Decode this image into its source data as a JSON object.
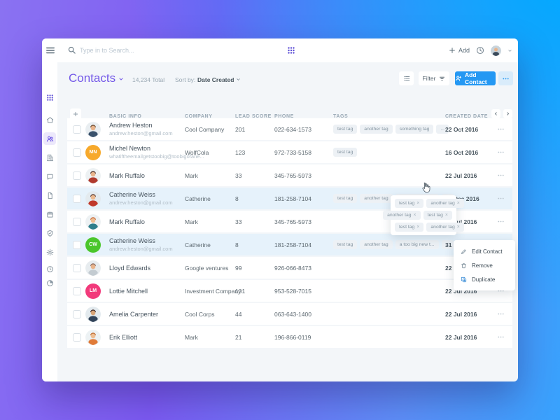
{
  "topbar": {
    "search_placeholder": "Type in to Search...",
    "add_label": "Add"
  },
  "sidebar": {
    "items": [
      {
        "name": "apps",
        "icon": "grid",
        "active": false,
        "accent": true
      },
      {
        "name": "home",
        "icon": "home",
        "active": false
      },
      {
        "name": "contacts",
        "icon": "users",
        "active": true
      },
      {
        "name": "companies",
        "icon": "building",
        "active": false
      },
      {
        "name": "messages",
        "icon": "chat",
        "active": false
      },
      {
        "name": "documents",
        "icon": "file",
        "active": false
      },
      {
        "name": "calendar",
        "icon": "calendar",
        "active": false
      },
      {
        "name": "tasks",
        "icon": "shield-check",
        "active": false
      },
      {
        "name": "settings",
        "icon": "gear",
        "active": false
      },
      {
        "name": "history",
        "icon": "history",
        "active": false
      },
      {
        "name": "reports",
        "icon": "pie",
        "active": false
      }
    ]
  },
  "page": {
    "title": "Contacts",
    "total": "14,234 Total",
    "sort_label": "Sort by:",
    "sort_value": "Date Created",
    "filter_label": "Filter",
    "add_contact_label": "Add Contact"
  },
  "table": {
    "headers": {
      "basic_info": "BASIC INFO",
      "company": "COMPANY",
      "lead_score": "LEAD SCORE",
      "phone": "PHONE",
      "tags": "TAGS",
      "created_date": "CREATED DATE"
    },
    "overflow_pill": "...",
    "rows": [
      {
        "name": "Andrew Heston",
        "email": "andrew.heston@gmail.com",
        "company": "Cool Company",
        "lead_score": "201",
        "phone": "022-634-1573",
        "tags": [
          "test tag",
          "another tag",
          "something tag"
        ],
        "tags_overflow": true,
        "created": "22 Oct 2016",
        "highlighted": false,
        "menu_active": false,
        "avatar": {
          "kind": "photo",
          "bg": "#E9EEF1",
          "shirt": "#39516B",
          "skin": "#E8B48C",
          "hair": "#6B4A2F"
        }
      },
      {
        "name": "Michel Newton",
        "email": "whatiftheemailgetstoobig@toobigofane...",
        "company": "WolfCola",
        "lead_score": "123",
        "phone": "972-733-5158",
        "tags": [
          "test tag"
        ],
        "tags_overflow": false,
        "created": "16 Oct 2016",
        "highlighted": false,
        "menu_active": false,
        "avatar": {
          "kind": "initials",
          "text": "MN",
          "bg": "#F7A92B"
        }
      },
      {
        "name": "Mark Ruffalo",
        "email": "",
        "company": "Mark",
        "lead_score": "33",
        "phone": "345-765-5973",
        "tags": [],
        "tags_overflow": false,
        "created": "22 Jul 2016",
        "highlighted": false,
        "menu_active": false,
        "avatar": {
          "kind": "photo",
          "bg": "#EDF1F3",
          "shirt": "#B03A2E",
          "skin": "#E8B48C",
          "hair": "#4E342E"
        }
      },
      {
        "name": "Catherine Weiss",
        "email": "andrew.heston@gmail.com",
        "company": "Catherine",
        "lead_score": "8",
        "phone": "181-258-7104",
        "tags": [
          "test tag",
          "another tag",
          "a too big new t..."
        ],
        "tags_overflow": true,
        "created": "31 Dec 2016",
        "highlighted": true,
        "menu_active": false,
        "avatar": {
          "kind": "photo",
          "bg": "#E3EAEE",
          "shirt": "#C0392B",
          "skin": "#ECB98F",
          "hair": "#5D4037"
        }
      },
      {
        "name": "Mark Ruffalo",
        "email": "",
        "company": "Mark",
        "lead_score": "33",
        "phone": "345-765-5973",
        "tags": [],
        "tags_overflow": false,
        "created": "22 Jul 2016",
        "highlighted": false,
        "menu_active": false,
        "avatar": {
          "kind": "photo",
          "bg": "#EDF1F3",
          "shirt": "#2E7E8C",
          "skin": "#EDBE93",
          "hair": "#C96B3B"
        }
      },
      {
        "name": "Catherine Weiss",
        "email": "andrew.heston@gmail.com",
        "company": "Catherine",
        "lead_score": "8",
        "phone": "181-258-7104",
        "tags": [
          "test tag",
          "another tag",
          "a too big new t..."
        ],
        "tags_overflow": true,
        "created": "31 Dec 2016",
        "highlighted": true,
        "menu_active": true,
        "avatar": {
          "kind": "initials",
          "text": "CW",
          "bg": "#4AC62B"
        }
      },
      {
        "name": "Lloyd Edwards",
        "email": "",
        "company": "Google ventures",
        "lead_score": "99",
        "phone": "926-066-8473",
        "tags": [],
        "tags_overflow": false,
        "created": "22 Jul 2016",
        "highlighted": false,
        "menu_active": false,
        "avatar": {
          "kind": "photo",
          "bg": "#E7ECEF",
          "shirt": "#C3CBD1",
          "skin": "#E8B48C",
          "hair": "#8D6E63"
        }
      },
      {
        "name": "Lottie Mitchell",
        "email": "",
        "company": "Investment Company",
        "lead_score": "101",
        "phone": "953-528-7015",
        "tags": [],
        "tags_overflow": false,
        "created": "22 Jul 2016",
        "highlighted": false,
        "menu_active": false,
        "avatar": {
          "kind": "initials",
          "text": "LM",
          "bg": "#F23A7B"
        }
      },
      {
        "name": "Amelia Carpenter",
        "email": "",
        "company": "Cool Corps",
        "lead_score": "44",
        "phone": "063-643-1400",
        "tags": [],
        "tags_overflow": false,
        "created": "22 Jul 2016",
        "highlighted": false,
        "menu_active": false,
        "avatar": {
          "kind": "photo",
          "bg": "#E3EAEE",
          "shirt": "#31445A",
          "skin": "#D9A577",
          "hair": "#3E2723"
        }
      },
      {
        "name": "Erik Elliott",
        "email": "",
        "company": "Mark",
        "lead_score": "21",
        "phone": "196-866-0119",
        "tags": [],
        "tags_overflow": false,
        "created": "22 Jul 2016",
        "highlighted": false,
        "menu_active": false,
        "avatar": {
          "kind": "photo",
          "bg": "#EDF2F4",
          "shirt": "#E07B39",
          "skin": "#EDBE93",
          "hair": "#BF6B2F"
        }
      }
    ]
  },
  "tag_popup": {
    "rows": [
      [
        "test tag",
        "another tag"
      ],
      [
        "another tag",
        "test tag"
      ],
      [
        "test tag",
        "another tag"
      ]
    ]
  },
  "context_menu": {
    "items": [
      {
        "icon": "pencil",
        "label": "Edit Contact",
        "blue": false
      },
      {
        "icon": "trash",
        "label": "Remove",
        "blue": false
      },
      {
        "icon": "copy",
        "label": "Duplicate",
        "blue": true
      }
    ]
  },
  "colors": {
    "accent_purple": "#6C56E4",
    "accent_blue": "#2498F3",
    "row_highlight": "#E6F2FB",
    "tag_bg": "#EDF1F5",
    "content_bg": "#F3F6F9"
  }
}
